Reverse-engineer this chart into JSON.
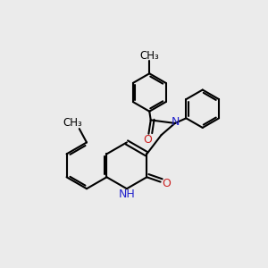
{
  "bg_color": "#ebebeb",
  "bond_color": "#000000",
  "N_color": "#2222cc",
  "O_color": "#cc2222",
  "line_width": 1.5,
  "font_size": 9,
  "figsize": [
    3.0,
    3.0
  ],
  "dpi": 100,
  "xlim": [
    0,
    10
  ],
  "ylim": [
    0,
    10
  ]
}
